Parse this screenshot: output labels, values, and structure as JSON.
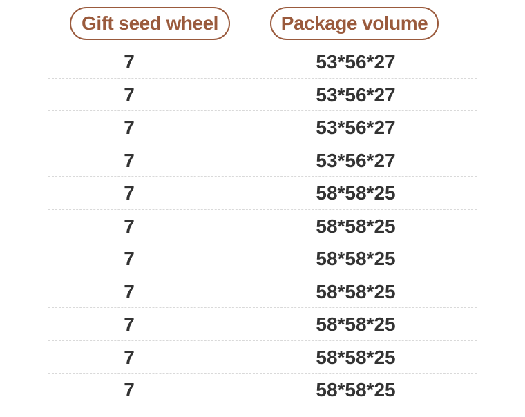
{
  "table": {
    "headers": {
      "gift_seed_wheel": "Gift seed wheel",
      "package_volume": "Package volume"
    },
    "rows": [
      {
        "gift_seed_wheel": "7",
        "package_volume": "53*56*27"
      },
      {
        "gift_seed_wheel": "7",
        "package_volume": "53*56*27"
      },
      {
        "gift_seed_wheel": "7",
        "package_volume": "53*56*27"
      },
      {
        "gift_seed_wheel": "7",
        "package_volume": "53*56*27"
      },
      {
        "gift_seed_wheel": "7",
        "package_volume": "58*58*25"
      },
      {
        "gift_seed_wheel": "7",
        "package_volume": "58*58*25"
      },
      {
        "gift_seed_wheel": "7",
        "package_volume": "58*58*25"
      },
      {
        "gift_seed_wheel": "7",
        "package_volume": "58*58*25"
      },
      {
        "gift_seed_wheel": "7",
        "package_volume": "58*58*25"
      },
      {
        "gift_seed_wheel": "7",
        "package_volume": "58*58*25"
      },
      {
        "gift_seed_wheel": "7",
        "package_volume": "58*58*25"
      }
    ]
  },
  "colors": {
    "header_accent": "#9a5a3c",
    "cell_text": "#333333",
    "divider": "#d9d9d9"
  }
}
